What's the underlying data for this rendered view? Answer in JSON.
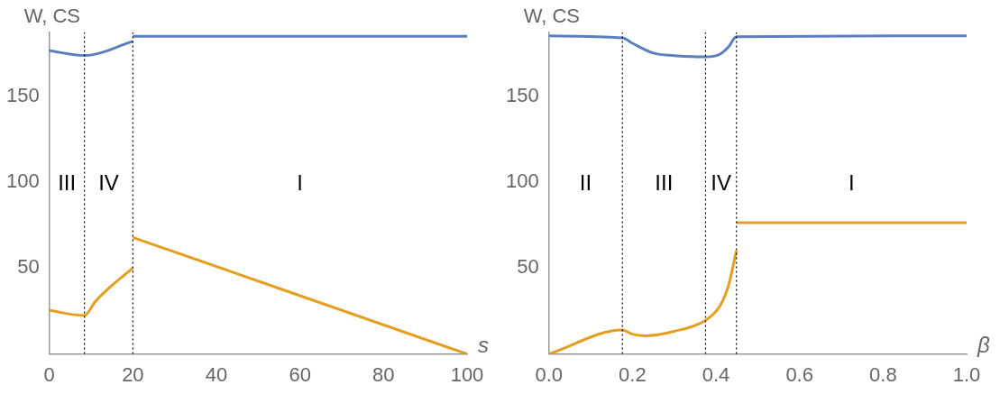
{
  "chart_data": [
    {
      "type": "line",
      "xlabel": "s",
      "ylabel": "W, CS",
      "xlim": [
        0,
        100
      ],
      "xticks": [
        0,
        20,
        40,
        60,
        80,
        100
      ],
      "ylim": [
        0,
        187
      ],
      "yticks": [
        50,
        100,
        150
      ],
      "grid": false,
      "legend": false,
      "marker": "none",
      "line_style": "solid",
      "series": [
        {
          "color": "#5b7fbd",
          "x": [
            0,
            8.4,
            20
          ],
          "values": [
            176.4,
            173.6,
            181.8
          ]
        },
        {
          "color": "#5b7fbd",
          "x": [
            20,
            100
          ],
          "values": [
            184.8,
            184.8
          ]
        },
        {
          "color": "#e59e1f",
          "x": [
            0,
            8.4,
            11,
            14,
            17,
            20
          ],
          "values": [
            25.3,
            22.4,
            30.5,
            37.7,
            44,
            50
          ]
        },
        {
          "color": "#e59e1f",
          "x": [
            20,
            100
          ],
          "values": [
            67.8,
            0
          ]
        }
      ],
      "ref_lines": [
        {
          "axis": "x",
          "value": 8.4,
          "line_style": "dotted",
          "color": "#000000"
        },
        {
          "axis": "x",
          "value": 20,
          "line_style": "dotted",
          "color": "#000000"
        }
      ],
      "annotations": [
        "III",
        "IV",
        "I"
      ]
    },
    {
      "type": "line",
      "xlabel": "β",
      "ylabel": "W, CS",
      "xlim": [
        0,
        1
      ],
      "xticks": [
        {
          "value": 0,
          "label": "0.0"
        },
        {
          "value": 0.2,
          "label": "0.2"
        },
        {
          "value": 0.4,
          "label": "0.4"
        },
        {
          "value": 0.6,
          "label": "0.6"
        },
        {
          "value": 0.8,
          "label": "0.8"
        },
        {
          "value": 1,
          "label": "1.0"
        }
      ],
      "ylim": [
        0,
        187
      ],
      "yticks": [
        50,
        100,
        150
      ],
      "grid": false,
      "legend": false,
      "marker": "none",
      "line_style": "solid",
      "series": [
        {
          "color": "#5b7fbd",
          "x": [
            0,
            0.176,
            0.2,
            0.25,
            0.3,
            0.35,
            0.375,
            0.41,
            0.43,
            0.449,
            1
          ],
          "values": [
            185,
            183.8,
            180.7,
            175,
            173.5,
            172.9,
            172.8,
            174.4,
            178.6,
            184.5,
            185
          ]
        },
        {
          "color": "#e59e1f",
          "x": [
            0,
            0.176,
            0.2,
            0.23,
            0.3,
            0.375,
            0.41,
            0.43,
            0.449
          ],
          "values": [
            0,
            13.9,
            11.5,
            10.6,
            13.2,
            19.6,
            28.1,
            39.8,
            60.2
          ]
        },
        {
          "color": "#e59e1f",
          "x": [
            0.449,
            1
          ],
          "values": [
            76.4,
            76.4
          ]
        }
      ],
      "ref_lines": [
        {
          "axis": "x",
          "value": 0.176,
          "line_style": "dotted",
          "color": "#000000"
        },
        {
          "axis": "x",
          "value": 0.375,
          "line_style": "dotted",
          "color": "#000000"
        },
        {
          "axis": "x",
          "value": 0.449,
          "line_style": "dotted",
          "color": "#000000"
        }
      ],
      "annotations": [
        "II",
        "III",
        "IV",
        "I"
      ]
    }
  ]
}
